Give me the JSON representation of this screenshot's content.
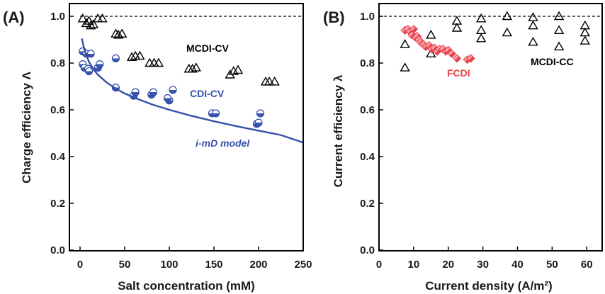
{
  "chart_data": [
    {
      "panel_label": "(A)",
      "type": "scatter",
      "xlabel": "Salt concentration (mM)",
      "ylabel": "Charge efficiency  Λ",
      "xlim": [
        0,
        250
      ],
      "ylim": [
        0,
        1.0
      ],
      "x_ticks": [
        0,
        50,
        100,
        150,
        200,
        250
      ],
      "y_ticks": [
        0.0,
        0.2,
        0.4,
        0.6,
        0.8,
        1.0
      ],
      "reference_line": 1.0,
      "series": [
        {
          "name": "MCDI-CV",
          "marker": "open-triangle",
          "color": "#000000",
          "points": [
            [
              3,
              0.99
            ],
            [
              7,
              0.97
            ],
            [
              10,
              0.98
            ],
            [
              12,
              0.96
            ],
            [
              15,
              0.965
            ],
            [
              20,
              0.99
            ],
            [
              25,
              0.99
            ],
            [
              40,
              0.925
            ],
            [
              43,
              0.92
            ],
            [
              47,
              0.925
            ],
            [
              58,
              0.825
            ],
            [
              62,
              0.83
            ],
            [
              67,
              0.83
            ],
            [
              78,
              0.8
            ],
            [
              83,
              0.8
            ],
            [
              88,
              0.8
            ],
            [
              122,
              0.775
            ],
            [
              126,
              0.775
            ],
            [
              130,
              0.78
            ],
            [
              168,
              0.75
            ],
            [
              172,
              0.765
            ],
            [
              177,
              0.77
            ],
            [
              208,
              0.72
            ],
            [
              212,
              0.72
            ],
            [
              218,
              0.72
            ]
          ]
        },
        {
          "name": "CDI-CV",
          "marker": "half-filled-circle",
          "color": "#2f4aa0",
          "points": [
            [
              3,
              0.85
            ],
            [
              3,
              0.795
            ],
            [
              5,
              0.78
            ],
            [
              7,
              0.84
            ],
            [
              9,
              0.775
            ],
            [
              10,
              0.765
            ],
            [
              12,
              0.84
            ],
            [
              20,
              0.78
            ],
            [
              22,
              0.795
            ],
            [
              40,
              0.82
            ],
            [
              40,
              0.695
            ],
            [
              60,
              0.66
            ],
            [
              62,
              0.675
            ],
            [
              80,
              0.665
            ],
            [
              82,
              0.675
            ],
            [
              100,
              0.64
            ],
            [
              98,
              0.65
            ],
            [
              104,
              0.685
            ],
            [
              148,
              0.585
            ],
            [
              152,
              0.585
            ],
            [
              198,
              0.54
            ],
            [
              200,
              0.545
            ],
            [
              202,
              0.585
            ]
          ]
        },
        {
          "name": "i-mD model",
          "marker": "line",
          "color": "#3550a8",
          "points": [
            [
              2,
              0.905
            ],
            [
              5,
              0.855
            ],
            [
              10,
              0.805
            ],
            [
              15,
              0.773
            ],
            [
              20,
              0.75
            ],
            [
              30,
              0.716
            ],
            [
              40,
              0.691
            ],
            [
              50,
              0.67
            ],
            [
              60,
              0.653
            ],
            [
              80,
              0.624
            ],
            [
              100,
              0.6
            ],
            [
              125,
              0.574
            ],
            [
              150,
              0.551
            ],
            [
              175,
              0.53
            ],
            [
              200,
              0.511
            ],
            [
              225,
              0.492
            ],
            [
              250,
              0.46
            ]
          ]
        }
      ],
      "annotations": [
        {
          "text": "MCDI-CV",
          "color": "#000000"
        },
        {
          "text": "CDI-CV",
          "color": "#3550a8"
        },
        {
          "text": "i-mD model",
          "color": "#3550a8"
        }
      ]
    },
    {
      "panel_label": "(B)",
      "type": "scatter",
      "xlabel": "Current density (A/m²)",
      "ylabel": "Current efficiency  λ",
      "xlim": [
        0,
        62
      ],
      "ylim": [
        0,
        1.0
      ],
      "x_ticks": [
        0,
        10,
        20,
        30,
        40,
        50,
        60
      ],
      "y_ticks": [
        0.0,
        0.2,
        0.4,
        0.6,
        0.8,
        1.0
      ],
      "reference_line": 1.0,
      "series": [
        {
          "name": "MCDI-CC",
          "marker": "open-triangle",
          "color": "#000000",
          "points": [
            [
              7.5,
              0.88
            ],
            [
              7.5,
              0.78
            ],
            [
              15,
              0.92
            ],
            [
              15,
              0.84
            ],
            [
              22.5,
              0.98
            ],
            [
              22.5,
              0.95
            ],
            [
              29.5,
              0.99
            ],
            [
              29.5,
              0.94
            ],
            [
              29.5,
              0.905
            ],
            [
              37,
              1.0
            ],
            [
              37,
              0.93
            ],
            [
              44.5,
              0.995
            ],
            [
              44.5,
              0.96
            ],
            [
              44.5,
              0.89
            ],
            [
              52,
              1.0
            ],
            [
              52,
              0.94
            ],
            [
              52,
              0.87
            ],
            [
              59.5,
              0.96
            ],
            [
              59.5,
              0.93
            ],
            [
              59.5,
              0.895
            ]
          ]
        },
        {
          "name": "FCDI",
          "marker": "half-filled-diamond",
          "color": "#e8414a",
          "points": [
            [
              7.5,
              0.94
            ],
            [
              8.3,
              0.945
            ],
            [
              9,
              0.935
            ],
            [
              9.5,
              0.92
            ],
            [
              10,
              0.945
            ],
            [
              10.5,
              0.91
            ],
            [
              11,
              0.915
            ],
            [
              11.5,
              0.9
            ],
            [
              12,
              0.89
            ],
            [
              12.8,
              0.88
            ],
            [
              13.5,
              0.87
            ],
            [
              14.5,
              0.875
            ],
            [
              15.2,
              0.86
            ],
            [
              16,
              0.865
            ],
            [
              16.8,
              0.85
            ],
            [
              17.5,
              0.86
            ],
            [
              18.5,
              0.86
            ],
            [
              19.3,
              0.85
            ],
            [
              20,
              0.855
            ],
            [
              21,
              0.84
            ],
            [
              22.5,
              0.82
            ],
            [
              25.5,
              0.815
            ],
            [
              26.5,
              0.82
            ]
          ]
        }
      ],
      "annotations": [
        {
          "text": "MCDI-CC",
          "color": "#000000"
        },
        {
          "text": "FCDI",
          "color": "#e8414a"
        }
      ]
    }
  ]
}
